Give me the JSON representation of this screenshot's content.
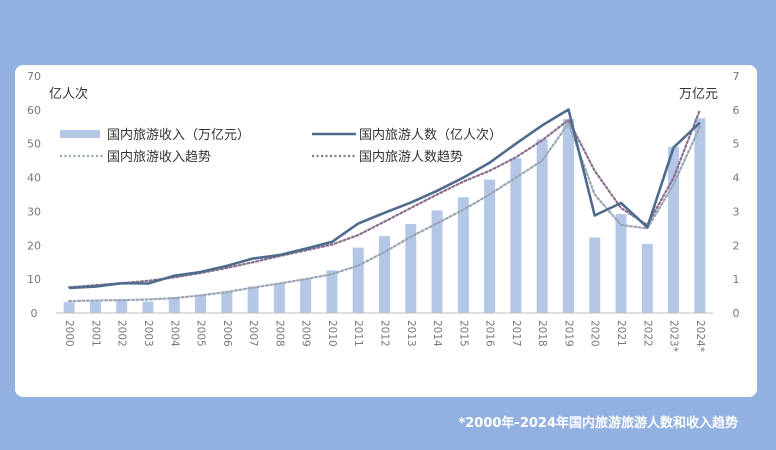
{
  "caption": "*2000年-2024年国内旅游旅游人数和收入趋势",
  "chart_data": {
    "type": "bar",
    "left_axis_unit": "亿人次",
    "right_axis_unit": "万亿元",
    "left_ylim": [
      0,
      70
    ],
    "right_ylim": [
      0,
      7
    ],
    "left_ticks": [
      "0",
      "10",
      "20",
      "30",
      "40",
      "50",
      "60",
      "70"
    ],
    "right_ticks": [
      "0",
      "1",
      "2",
      "3",
      "4",
      "5",
      "6",
      "7"
    ],
    "categories": [
      "2000",
      "2001",
      "2002",
      "2003",
      "2004",
      "2005",
      "2006",
      "2007",
      "2008",
      "2009",
      "2010",
      "2011",
      "2012",
      "2013",
      "2014",
      "2015",
      "2016",
      "2017",
      "2018",
      "2019",
      "2020",
      "2021",
      "2022",
      "2023*",
      "2024*"
    ],
    "legend_position": "top-left",
    "grid": false,
    "series": [
      {
        "name": "国内旅游收入（万亿元）",
        "kind": "bar",
        "axis": "right",
        "color": "#b4c7e7",
        "values": [
          0.32,
          0.35,
          0.39,
          0.34,
          0.47,
          0.53,
          0.62,
          0.78,
          0.87,
          1.02,
          1.26,
          1.93,
          2.27,
          2.63,
          3.03,
          3.42,
          3.94,
          4.57,
          5.13,
          5.73,
          2.23,
          2.92,
          2.04,
          4.91,
          5.75
        ]
      },
      {
        "name": "国内旅游人数（亿人次）",
        "kind": "line",
        "axis": "left",
        "color": "#4f6b8c",
        "values": [
          7.4,
          7.8,
          8.8,
          8.7,
          11.0,
          12.1,
          13.9,
          16.1,
          17.1,
          19.0,
          21.0,
          26.4,
          29.6,
          32.6,
          36.1,
          40.0,
          44.4,
          50.0,
          55.4,
          60.1,
          28.8,
          32.5,
          25.3,
          48.9,
          56.2
        ]
      },
      {
        "name": "国内旅游收入趋势",
        "kind": "dotted-line",
        "axis": "right",
        "color": "#9aa6b4",
        "values": [
          0.35,
          0.37,
          0.38,
          0.4,
          0.44,
          0.52,
          0.62,
          0.75,
          0.87,
          1.0,
          1.15,
          1.4,
          1.8,
          2.25,
          2.65,
          3.05,
          3.5,
          4.0,
          4.5,
          5.6,
          3.5,
          2.6,
          2.5,
          3.8,
          5.5
        ]
      },
      {
        "name": "国内旅游人数趋势",
        "kind": "dotted-line",
        "axis": "left",
        "color": "#8a6f8e",
        "values": [
          7.6,
          8.2,
          8.8,
          9.5,
          10.5,
          11.8,
          13.3,
          15.0,
          16.8,
          18.5,
          20.2,
          23.0,
          27.0,
          31.0,
          35.0,
          38.8,
          42.0,
          46.0,
          51.0,
          57.0,
          42.0,
          31.0,
          26.0,
          40.0,
          60.0
        ]
      }
    ]
  }
}
